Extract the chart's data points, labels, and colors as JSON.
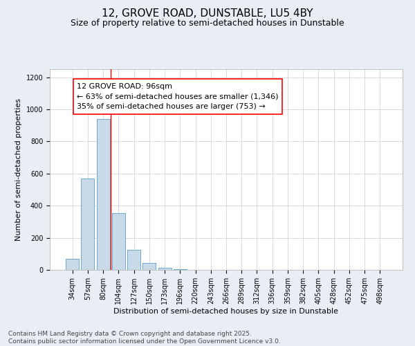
{
  "title": "12, GROVE ROAD, DUNSTABLE, LU5 4BY",
  "subtitle": "Size of property relative to semi-detached houses in Dunstable",
  "xlabel": "Distribution of semi-detached houses by size in Dunstable",
  "ylabel": "Number of semi-detached properties",
  "categories": [
    "34sqm",
    "57sqm",
    "80sqm",
    "104sqm",
    "127sqm",
    "150sqm",
    "173sqm",
    "196sqm",
    "220sqm",
    "243sqm",
    "266sqm",
    "289sqm",
    "312sqm",
    "336sqm",
    "359sqm",
    "382sqm",
    "405sqm",
    "428sqm",
    "452sqm",
    "475sqm",
    "498sqm"
  ],
  "values": [
    68,
    570,
    940,
    355,
    125,
    45,
    12,
    4,
    0,
    0,
    0,
    0,
    0,
    0,
    0,
    0,
    0,
    0,
    0,
    0,
    0
  ],
  "bar_color": "#c8d9e8",
  "bar_edge_color": "#5a9ec8",
  "red_line_x": 2.5,
  "annotation_box_text": "12 GROVE ROAD: 96sqm\n← 63% of semi-detached houses are smaller (1,346)\n35% of semi-detached houses are larger (753) →",
  "ylim": [
    0,
    1250
  ],
  "yticks": [
    0,
    200,
    400,
    600,
    800,
    1000,
    1200
  ],
  "footer_line1": "Contains HM Land Registry data © Crown copyright and database right 2025.",
  "footer_line2": "Contains public sector information licensed under the Open Government Licence v3.0.",
  "background_color": "#e8eef4",
  "plot_bg_color": "#ffffff",
  "title_fontsize": 11,
  "subtitle_fontsize": 9,
  "axis_fontsize": 8,
  "tick_fontsize": 7,
  "annotation_fontsize": 8,
  "footer_fontsize": 6.5
}
